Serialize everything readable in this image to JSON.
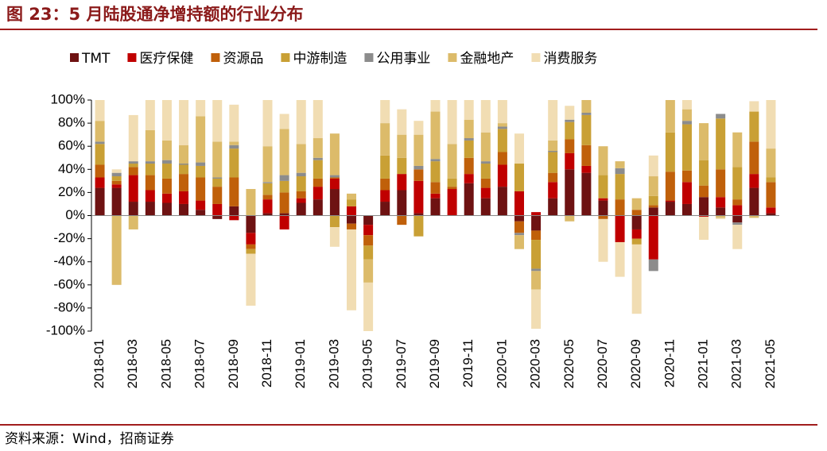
{
  "chart_data": {
    "type": "stacked_bar",
    "title": "图 23：5 月陆股通净增持额的行业分布",
    "source": "资料来源：Wind，招商证券",
    "categories": [
      "2018-01",
      null,
      "2018-03",
      null,
      "2018-05",
      null,
      "2018-07",
      null,
      "2018-09",
      null,
      "2018-11",
      null,
      "2019-01",
      null,
      "2019-03",
      null,
      "2019-05",
      null,
      "2019-07",
      null,
      "2019-09",
      null,
      "2019-11",
      null,
      "2020-01",
      null,
      "2020-03",
      null,
      "2020-05",
      null,
      "2020-07",
      null,
      "2020-09",
      null,
      "2020-11",
      null,
      "2021-01",
      null,
      "2021-03",
      null,
      "2021-05"
    ],
    "series": [
      {
        "name": "TMT",
        "color": "#6e1212",
        "values": [
          24,
          24,
          12,
          12,
          11,
          10,
          5,
          -3,
          8,
          -15,
          2,
          2,
          11,
          14,
          23,
          -7,
          -8,
          12,
          22,
          2,
          15,
          0,
          28,
          15,
          25,
          -5,
          -13,
          15,
          40,
          37,
          13,
          0,
          -12,
          7,
          12,
          10,
          16,
          7,
          -6,
          24,
          2
        ]
      },
      {
        "name": "医疗保健",
        "color": "#c00000",
        "values": [
          9,
          3,
          23,
          10,
          8,
          11,
          8,
          10,
          -4,
          -10,
          12,
          -12,
          4,
          11,
          9,
          8,
          -9,
          10,
          14,
          28,
          4,
          23,
          8,
          9,
          19,
          21,
          3,
          14,
          14,
          6,
          2,
          -23,
          -8,
          -38,
          1,
          19,
          -1,
          9,
          9,
          12,
          5
        ]
      },
      {
        "name": "资源品",
        "color": "#c0600a",
        "values": [
          11,
          3,
          7,
          13,
          13,
          15,
          20,
          15,
          25,
          -4,
          4,
          18,
          6,
          7,
          1,
          -5,
          -9,
          10,
          -8,
          10,
          10,
          2,
          14,
          8,
          11,
          -10,
          -8,
          8,
          12,
          18,
          -3,
          14,
          5,
          2,
          25,
          10,
          10,
          24,
          5,
          28,
          22
        ]
      },
      {
        "name": "中游制造",
        "color": "#c9a035",
        "values": [
          18,
          4,
          3,
          10,
          13,
          8,
          10,
          7,
          25,
          -4,
          10,
          10,
          13,
          16,
          -10,
          6,
          -12,
          20,
          14,
          -18,
          18,
          7,
          15,
          13,
          20,
          24,
          -25,
          18,
          15,
          26,
          20,
          22,
          -5,
          8,
          34,
          40,
          22,
          44,
          28,
          26,
          4
        ]
      },
      {
        "name": "公用事业",
        "color": "#8c8c8c",
        "values": [
          2,
          3,
          2,
          2,
          3,
          1,
          3,
          1,
          3,
          0,
          1,
          5,
          3,
          2,
          2,
          0,
          0,
          0,
          0,
          3,
          2,
          0,
          2,
          2,
          2,
          -2,
          -2,
          1,
          2,
          2,
          0,
          5,
          0,
          -10,
          0,
          3,
          0,
          4,
          -2,
          0,
          0
        ]
      },
      {
        "name": "金融地产",
        "color": "#dcbb6a",
        "values": [
          18,
          -60,
          -12,
          27,
          17,
          16,
          40,
          31,
          3,
          23,
          31,
          40,
          25,
          17,
          36,
          5,
          -20,
          28,
          20,
          27,
          41,
          30,
          16,
          25,
          3,
          -12,
          -16,
          9,
          -5,
          11,
          25,
          6,
          10,
          17,
          28,
          10,
          32,
          -2,
          30,
          -2,
          25
        ]
      },
      {
        "name": "消费服务",
        "color": "#f1ddb3",
        "values": [
          18,
          3,
          40,
          26,
          35,
          39,
          14,
          36,
          32,
          -45,
          40,
          13,
          38,
          33,
          -17,
          -70,
          -42,
          20,
          22,
          12,
          10,
          38,
          17,
          28,
          20,
          26,
          -34,
          35,
          12,
          0,
          -37,
          -30,
          -60,
          18,
          0,
          8,
          -20,
          -1,
          -21,
          9,
          42
        ]
      }
    ],
    "ylim": [
      -100,
      100
    ],
    "yticks": [
      {
        "value": -100,
        "label": "-100%"
      },
      {
        "value": -80,
        "label": "-80%"
      },
      {
        "value": -60,
        "label": "-60%"
      },
      {
        "value": -40,
        "label": "-40%"
      },
      {
        "value": -20,
        "label": "-20%"
      },
      {
        "value": 0,
        "label": "0%"
      },
      {
        "value": 20,
        "label": "20%"
      },
      {
        "value": 40,
        "label": "40%"
      },
      {
        "value": 60,
        "label": "60%"
      },
      {
        "value": 80,
        "label": "80%"
      },
      {
        "value": 100,
        "label": "100%"
      }
    ],
    "legend": "top"
  }
}
